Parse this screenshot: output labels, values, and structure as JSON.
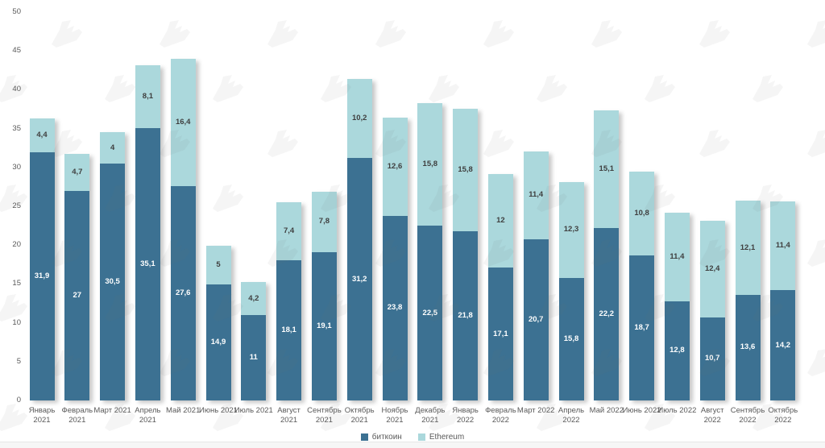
{
  "chart_data": {
    "type": "bar",
    "stacked": true,
    "title": "",
    "xlabel": "",
    "ylabel": "",
    "ylim": [
      0,
      50
    ],
    "yticks": [
      0,
      5,
      10,
      15,
      20,
      25,
      30,
      35,
      40,
      45,
      50
    ],
    "grid": false,
    "legend_position": "bottom-center",
    "categories": [
      "Январь\n2021",
      "Февраль\n2021",
      "Март 2021",
      "Апрель\n2021",
      "Май 2021",
      "Июнь 2021",
      "Июль 2021",
      "Август\n2021",
      "Сентябрь\n2021",
      "Октябрь\n2021",
      "Ноябрь\n2021",
      "Декабрь\n2021",
      "Январь\n2022",
      "Февраль\n2022",
      "Март 2022",
      "Апрель\n2022",
      "Май 2022",
      "Июнь 2022",
      "Июль 2022",
      "Август\n2022",
      "Сентябрь\n2022",
      "Октябрь\n2022"
    ],
    "series": [
      {
        "name": "биткоин",
        "color": "#3c7192",
        "label_color": "#ffffff",
        "values": [
          31.9,
          27,
          30.5,
          35.1,
          27.6,
          14.9,
          11,
          18.1,
          19.1,
          31.2,
          23.8,
          22.5,
          21.8,
          17.1,
          20.7,
          15.8,
          22.2,
          18.7,
          12.8,
          10.7,
          13.6,
          14.2
        ],
        "labels": [
          "31,9",
          "27",
          "30,5",
          "35,1",
          "27,6",
          "14,9",
          "11",
          "18,1",
          "19,1",
          "31,2",
          "23,8",
          "22,5",
          "21,8",
          "17,1",
          "20,7",
          "15,8",
          "22,2",
          "18,7",
          "12,8",
          "10,7",
          "13,6",
          "14,2"
        ]
      },
      {
        "name": "Ethereum",
        "color": "#abd8dc",
        "label_color": "#3f3f3f",
        "values": [
          4.4,
          4.7,
          4,
          8.1,
          16.4,
          5,
          4.2,
          7.4,
          7.8,
          10.2,
          12.6,
          15.8,
          15.8,
          12,
          11.4,
          12.3,
          15.1,
          10.8,
          11.4,
          12.4,
          12.1,
          11.4
        ],
        "labels": [
          "4,4",
          "4,7",
          "4",
          "8,1",
          "16,4",
          "5",
          "4,2",
          "7,4",
          "7,8",
          "10,2",
          "12,6",
          "15,8",
          "15,8",
          "12",
          "11,4",
          "12,3",
          "15,1",
          "10,8",
          "11,4",
          "12,4",
          "12,1",
          "11,4"
        ]
      }
    ]
  },
  "icons": {
    "watermark": "forklog-logo-watermark"
  },
  "colors": {
    "axis_text": "#595959",
    "bottom_strip": "#f6f6f6"
  }
}
